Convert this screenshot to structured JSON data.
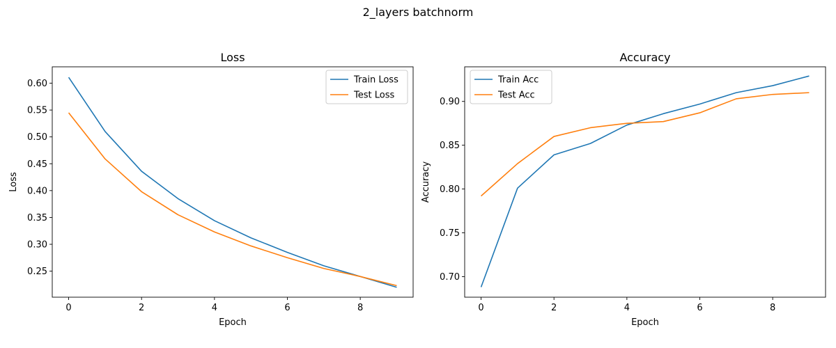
{
  "figure": {
    "suptitle": "2_layers batchnorm"
  },
  "colors": {
    "train": "#1f77b4",
    "test": "#ff7f0e"
  },
  "chart_data": [
    {
      "type": "line",
      "title": "Loss",
      "xlabel": "Epoch",
      "ylabel": "Loss",
      "x": [
        0,
        1,
        2,
        3,
        4,
        5,
        6,
        7,
        8,
        9
      ],
      "xlim": [
        -0.45,
        9.45
      ],
      "ylim": [
        0.2015,
        0.6305
      ],
      "xticks": [
        0,
        2,
        4,
        6,
        8
      ],
      "yticks": [
        0.25,
        0.3,
        0.35,
        0.4,
        0.45,
        0.5,
        0.55,
        0.6
      ],
      "ytick_labels": [
        "0.25",
        "0.30",
        "0.35",
        "0.40",
        "0.45",
        "0.50",
        "0.55",
        "0.60"
      ],
      "grid": false,
      "legend": "upper right",
      "series": [
        {
          "name": "Train Loss",
          "color": "#1f77b4",
          "values": [
            0.611,
            0.51,
            0.436,
            0.385,
            0.344,
            0.312,
            0.285,
            0.26,
            0.24,
            0.22
          ]
        },
        {
          "name": "Test Loss",
          "color": "#ff7f0e",
          "values": [
            0.545,
            0.459,
            0.398,
            0.355,
            0.323,
            0.297,
            0.275,
            0.255,
            0.24,
            0.223
          ]
        }
      ]
    },
    {
      "type": "line",
      "title": "Accuracy",
      "xlabel": "Epoch",
      "ylabel": "Accuracy",
      "x": [
        0,
        1,
        2,
        3,
        4,
        5,
        6,
        7,
        8,
        9
      ],
      "xlim": [
        -0.45,
        9.45
      ],
      "ylim": [
        0.6765,
        0.9395
      ],
      "xticks": [
        0,
        2,
        4,
        6,
        8
      ],
      "yticks": [
        0.7,
        0.75,
        0.8,
        0.85,
        0.9
      ],
      "ytick_labels": [
        "0.70",
        "0.75",
        "0.80",
        "0.85",
        "0.90"
      ],
      "grid": false,
      "legend": "upper left",
      "series": [
        {
          "name": "Train Acc",
          "color": "#1f77b4",
          "values": [
            0.688,
            0.801,
            0.839,
            0.852,
            0.873,
            0.886,
            0.897,
            0.91,
            0.918,
            0.929
          ]
        },
        {
          "name": "Test Acc",
          "color": "#ff7f0e",
          "values": [
            0.792,
            0.829,
            0.86,
            0.87,
            0.875,
            0.877,
            0.887,
            0.903,
            0.908,
            0.91
          ]
        }
      ]
    }
  ]
}
